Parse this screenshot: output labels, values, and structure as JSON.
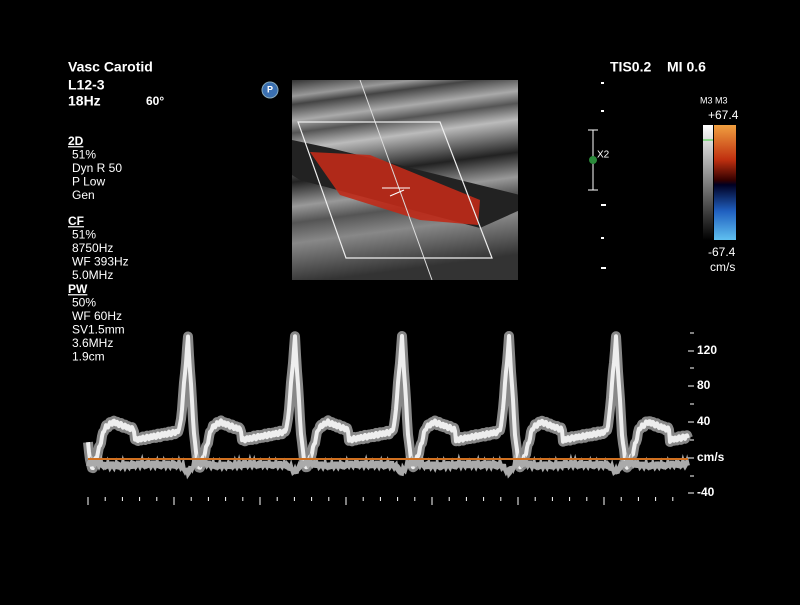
{
  "header": {
    "preset": "Vasc Carotid",
    "probe": "L12-3",
    "frame_rate": "18Hz",
    "angle": "60°",
    "thermal_index": "TIS0.2",
    "mechanical_index": "MI 0.6"
  },
  "badge": "P",
  "params": [
    {
      "title": "2D",
      "lines": [
        "51%",
        "Dyn R 50",
        "P Low",
        "Gen"
      ]
    },
    {
      "title": "CF",
      "lines": [
        "51%",
        "8750Hz",
        "WF 393Hz",
        "5.0MHz"
      ]
    },
    {
      "title": "PW",
      "lines": [
        "50%",
        "WF 60Hz",
        "SV1.5mm",
        "3.6MHz",
        "1.9cm"
      ]
    }
  ],
  "zoom": "X2",
  "color_bar": {
    "map": "M3 M3",
    "max": "+67.4",
    "min": "-67.4",
    "unit": "cm/s"
  },
  "doppler_scale": {
    "labels": [
      "120",
      "80",
      "40",
      "cm/s",
      "-40"
    ]
  }
}
